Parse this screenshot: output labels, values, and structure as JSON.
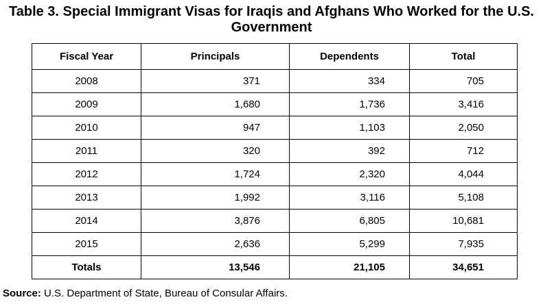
{
  "title": "Table 3. Special Immigrant Visas for Iraqis and Afghans Who Worked for the U.S. Government",
  "columns": [
    "Fiscal Year",
    "Principals",
    "Dependents",
    "Total"
  ],
  "rows": [
    {
      "year": "2008",
      "principals": "371",
      "dependents": "334",
      "total": "705"
    },
    {
      "year": "2009",
      "principals": "1,680",
      "dependents": "1,736",
      "total": "3,416"
    },
    {
      "year": "2010",
      "principals": "947",
      "dependents": "1,103",
      "total": "2,050"
    },
    {
      "year": "2011",
      "principals": "320",
      "dependents": "392",
      "total": "712"
    },
    {
      "year": "2012",
      "principals": "1,724",
      "dependents": "2,320",
      "total": "4,044"
    },
    {
      "year": "2013",
      "principals": "1,992",
      "dependents": "3,116",
      "total": "5,108"
    },
    {
      "year": "2014",
      "principals": "3,876",
      "dependents": "6,805",
      "total": "10,681"
    },
    {
      "year": "2015",
      "principals": "2,636",
      "dependents": "5,299",
      "total": "7,935"
    }
  ],
  "totals": {
    "label": "Totals",
    "principals": "13,546",
    "dependents": "21,105",
    "total": "34,651"
  },
  "source": {
    "label": "Source:",
    "text": "U.S. Department of State, Bureau of Consular Affairs."
  }
}
